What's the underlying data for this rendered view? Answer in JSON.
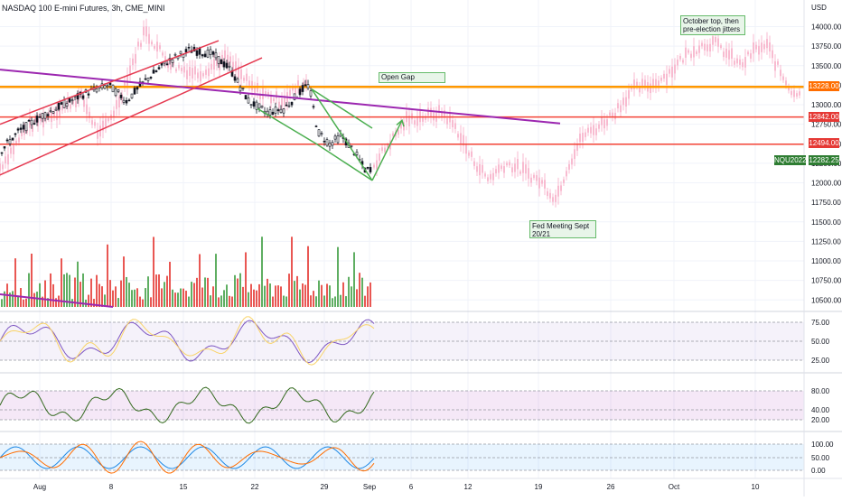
{
  "chart_data": {
    "type": "candlestick",
    "title": "NASDAQ 100 E-mini Futures, 3h, CME_MINI",
    "currency": "USD",
    "price_axis": {
      "ticks": [
        "14000.00",
        "13750.00",
        "13500.00",
        "13250.00",
        "13000.00",
        "12750.00",
        "12500.00",
        "12250.00",
        "12000.00",
        "11750.00",
        "11500.00",
        "11250.00",
        "11000.00",
        "10750.00",
        "10500.00"
      ],
      "range": [
        10400,
        14250
      ]
    },
    "time_axis": {
      "labels": [
        "Aug",
        "8",
        "15",
        "22",
        "29",
        "Sep",
        "6",
        "12",
        "19",
        "26",
        "Oct",
        "10"
      ]
    },
    "price_badges": [
      {
        "value": "13228.00",
        "color": "#ff6d00"
      },
      {
        "value": "12842.00",
        "color": "#e53935"
      },
      {
        "value": "12494.00",
        "color": "#e53935"
      },
      {
        "value": "12282.25",
        "color": "#2e7d32",
        "series": "NQU2022"
      }
    ],
    "horizontal_levels": [
      {
        "price": 13228,
        "color": "#ff9800"
      },
      {
        "price": 12842,
        "color": "#f44336"
      },
      {
        "price": 12494,
        "color": "#f44336"
      }
    ],
    "annotations": [
      {
        "text": "Open Gap"
      },
      {
        "text": "October top, then pre-election jitters"
      },
      {
        "text": "Fed Meeting Sept 20/21"
      }
    ],
    "rsi_panel": {
      "ticks": [
        "75.00",
        "50.00",
        "25.00"
      ]
    },
    "panel2": {
      "ticks": [
        "80.00",
        "40.00",
        "20.00"
      ]
    },
    "stoch_panel": {
      "ticks": [
        "100.00",
        "50.00",
        "0.00"
      ]
    },
    "colors": {
      "up": "#26a69a",
      "down": "#ef5350",
      "ghost": "#f8bbd0",
      "trend_purple": "#9c27b0",
      "trend_red": "#e53950",
      "wedge_green": "#4caf50"
    }
  }
}
